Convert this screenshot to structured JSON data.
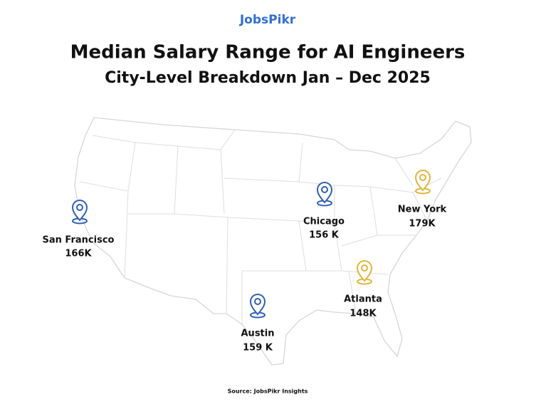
{
  "header": {
    "logo": "JobsPikr",
    "title": "Median Salary Range for AI Engineers",
    "subtitle": "City-Level Breakdown Jan – Dec 2025"
  },
  "cities": [
    {
      "name": "San Francisco",
      "salary": "166K",
      "color": "#2f5fb3"
    },
    {
      "name": "Chicago",
      "salary": "156 K",
      "color": "#2f5fb3"
    },
    {
      "name": "New York",
      "salary": "179K",
      "color": "#e0b43a"
    },
    {
      "name": "Atlanta",
      "salary": "148K",
      "color": "#e0b43a"
    },
    {
      "name": "Austin",
      "salary": "159 K",
      "color": "#2f5fb3"
    }
  ],
  "footer": {
    "source": "Source: JobsPikr Insights"
  }
}
